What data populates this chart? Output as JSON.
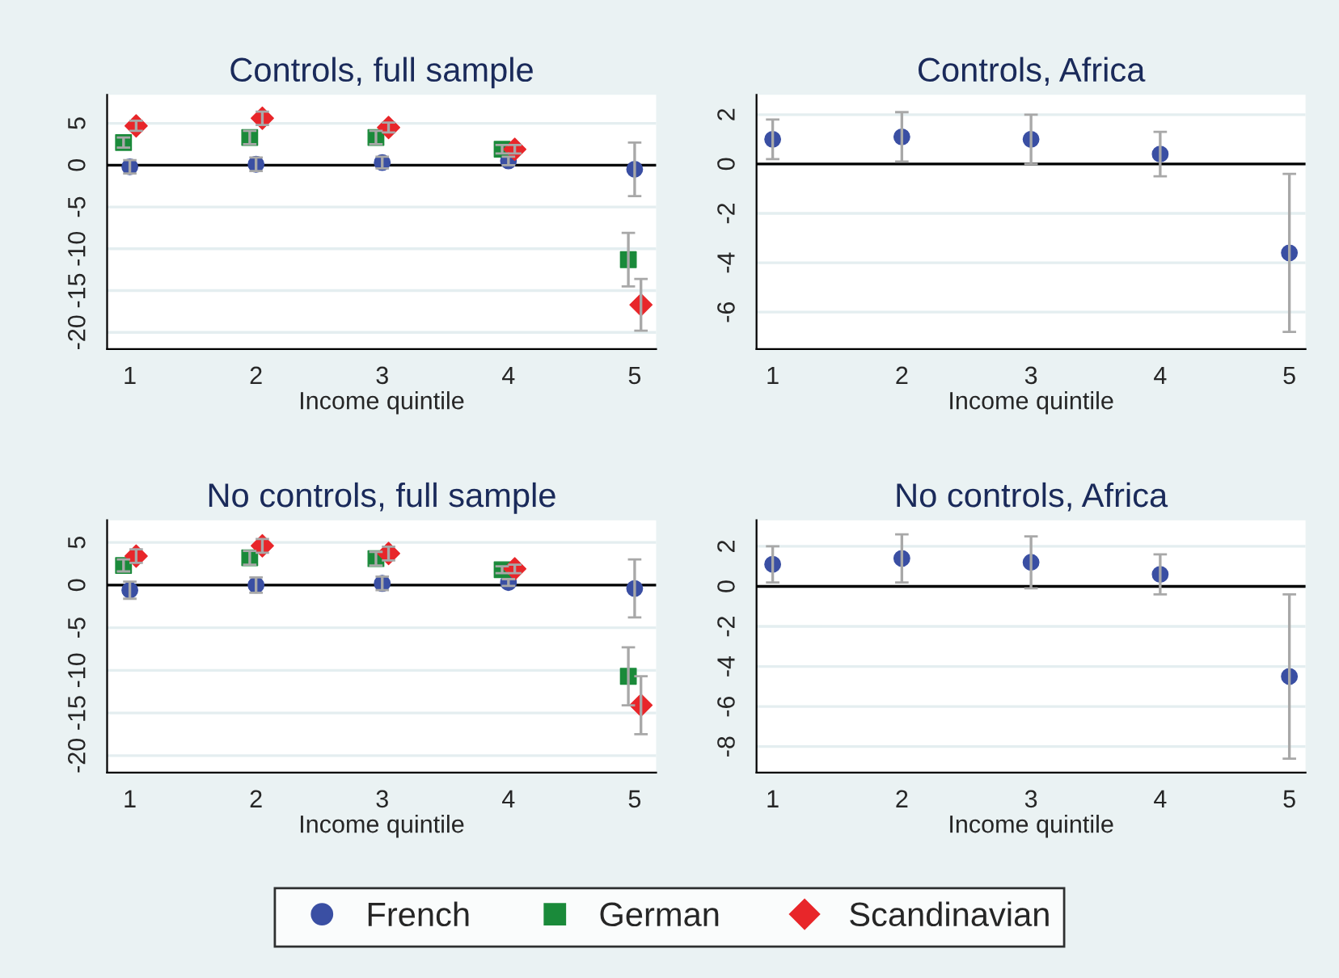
{
  "chart_data": [
    {
      "type": "scatter",
      "title": "Controls, full sample",
      "xlabel": "Income quintile",
      "xlim": [
        0.82,
        5.17
      ],
      "xticks": [
        1,
        2,
        3,
        4,
        5
      ],
      "ylim": [
        -22,
        8.4
      ],
      "yticks": [
        -20,
        -15,
        -10,
        -5,
        0,
        5
      ],
      "grid": "y",
      "legend": "bottom",
      "ref_lines": [
        {
          "axis": "y",
          "value": 0,
          "color": "#000000"
        }
      ],
      "series": [
        {
          "name": "French",
          "color": "#3a4fa3",
          "marker": "circle",
          "x": [
            1,
            2,
            3,
            4,
            5
          ],
          "values": [
            -0.2,
            0.1,
            0.3,
            0.5,
            -0.5
          ],
          "errors": [
            0.8,
            0.8,
            0.7,
            0.5,
            3.2
          ]
        },
        {
          "name": "German",
          "color": "#1a8a3a",
          "marker": "square",
          "x": [
            0.95,
            1.95,
            2.95,
            3.95,
            4.95
          ],
          "values": [
            2.7,
            3.3,
            3.3,
            1.9,
            -11.3
          ],
          "errors": [
            0.6,
            0.8,
            0.8,
            0.5,
            3.2
          ]
        },
        {
          "name": "Scandinavian",
          "color": "#e8262a",
          "marker": "diamond",
          "x": [
            1.05,
            2.05,
            3.05,
            4.05,
            5.05
          ],
          "values": [
            4.7,
            5.6,
            4.5,
            1.9,
            -16.7
          ],
          "errors": [
            0.6,
            0.8,
            0.6,
            0.5,
            3.1
          ]
        }
      ]
    },
    {
      "type": "scatter",
      "title": "Controls, Africa",
      "xlabel": "Income quintile",
      "xlim": [
        0.875,
        5.125
      ],
      "xticks": [
        1,
        2,
        3,
        4,
        5
      ],
      "ylim": [
        -7.5,
        2.8
      ],
      "yticks": [
        -6,
        -4,
        -2,
        0,
        2
      ],
      "grid": "y",
      "ref_lines": [
        {
          "axis": "y",
          "value": 0,
          "color": "#000000"
        }
      ],
      "series": [
        {
          "color": "#3a4fa3",
          "marker": "circle",
          "x": [
            1,
            2,
            3,
            4,
            5
          ],
          "values": [
            1.0,
            1.1,
            1.0,
            0.4,
            -3.6
          ],
          "errors": [
            0.8,
            1.0,
            1.0,
            0.9,
            3.2
          ]
        }
      ]
    },
    {
      "type": "scatter",
      "title": "No controls, full sample",
      "xlabel": "Income quintile",
      "xlim": [
        0.82,
        5.17
      ],
      "xticks": [
        1,
        2,
        3,
        4,
        5
      ],
      "ylim": [
        -22,
        7.6
      ],
      "yticks": [
        -20,
        -15,
        -10,
        -5,
        0,
        5
      ],
      "grid": "y",
      "ref_lines": [
        {
          "axis": "y",
          "value": 0,
          "color": "#000000"
        }
      ],
      "series": [
        {
          "color": "#3a4fa3",
          "marker": "circle",
          "x": [
            1,
            2,
            3,
            4,
            5
          ],
          "values": [
            -0.6,
            0.0,
            0.2,
            0.3,
            -0.4
          ],
          "errors": [
            1.0,
            0.9,
            0.8,
            0.4,
            3.4
          ]
        },
        {
          "color": "#1a8a3a",
          "marker": "square",
          "x": [
            0.95,
            1.95,
            2.95,
            3.95,
            4.95
          ],
          "values": [
            2.3,
            3.2,
            3.1,
            1.8,
            -10.7
          ],
          "errors": [
            0.7,
            0.8,
            0.8,
            0.4,
            3.4
          ]
        },
        {
          "color": "#e8262a",
          "marker": "diamond",
          "x": [
            1.05,
            2.05,
            3.05,
            4.05,
            5.05
          ],
          "values": [
            3.4,
            4.6,
            3.7,
            1.9,
            -14.1
          ],
          "errors": [
            0.8,
            0.8,
            0.8,
            0.5,
            3.4
          ]
        }
      ]
    },
    {
      "type": "scatter",
      "title": "No controls, Africa",
      "xlabel": "Income quintile",
      "xlim": [
        0.875,
        5.125
      ],
      "xticks": [
        1,
        2,
        3,
        4,
        5
      ],
      "ylim": [
        -9.3,
        3.3
      ],
      "yticks": [
        -8,
        -6,
        -4,
        -2,
        0,
        2
      ],
      "grid": "y",
      "ref_lines": [
        {
          "axis": "y",
          "value": 0,
          "color": "#000000"
        }
      ],
      "series": [
        {
          "color": "#3a4fa3",
          "marker": "circle",
          "x": [
            1,
            2,
            3,
            4,
            5
          ],
          "values": [
            1.1,
            1.4,
            1.2,
            0.6,
            -4.5
          ],
          "errors": [
            0.9,
            1.2,
            1.3,
            1.0,
            4.1
          ]
        }
      ]
    }
  ]
}
